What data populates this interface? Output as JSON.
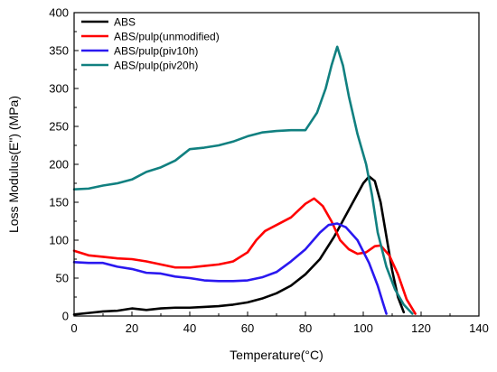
{
  "chart_data": {
    "type": "line",
    "xlabel": "Temperature(°C)",
    "ylabel": "Loss Modulus(E\") (MPa)",
    "xlim": [
      0,
      140
    ],
    "ylim": [
      0,
      400
    ],
    "xticks": [
      "0",
      "20",
      "40",
      "60",
      "80",
      "100",
      "120",
      "140"
    ],
    "yticks": [
      "0",
      "50",
      "100",
      "150",
      "200",
      "250",
      "300",
      "350",
      "400"
    ],
    "grid": false,
    "legend_position": "top-left",
    "series": [
      {
        "name": "ABS",
        "color": "#000000",
        "points": [
          [
            0,
            2
          ],
          [
            5,
            4
          ],
          [
            10,
            6
          ],
          [
            15,
            7
          ],
          [
            20,
            10
          ],
          [
            25,
            8
          ],
          [
            30,
            10
          ],
          [
            35,
            11
          ],
          [
            40,
            11
          ],
          [
            45,
            12
          ],
          [
            50,
            13
          ],
          [
            55,
            15
          ],
          [
            60,
            18
          ],
          [
            65,
            23
          ],
          [
            70,
            30
          ],
          [
            75,
            40
          ],
          [
            80,
            55
          ],
          [
            85,
            75
          ],
          [
            90,
            105
          ],
          [
            95,
            140
          ],
          [
            100,
            175
          ],
          [
            102,
            184
          ],
          [
            104,
            178
          ],
          [
            106,
            150
          ],
          [
            108,
            105
          ],
          [
            110,
            60
          ],
          [
            112,
            25
          ],
          [
            114,
            5
          ]
        ]
      },
      {
        "name": "ABS/pulp(unmodified)",
        "color": "#ff0000",
        "points": [
          [
            0,
            86
          ],
          [
            5,
            80
          ],
          [
            10,
            78
          ],
          [
            15,
            76
          ],
          [
            20,
            75
          ],
          [
            25,
            72
          ],
          [
            30,
            68
          ],
          [
            35,
            64
          ],
          [
            40,
            64
          ],
          [
            45,
            66
          ],
          [
            50,
            68
          ],
          [
            55,
            72
          ],
          [
            60,
            84
          ],
          [
            63,
            100
          ],
          [
            66,
            112
          ],
          [
            70,
            120
          ],
          [
            75,
            130
          ],
          [
            80,
            148
          ],
          [
            83,
            155
          ],
          [
            86,
            145
          ],
          [
            89,
            125
          ],
          [
            92,
            100
          ],
          [
            95,
            88
          ],
          [
            98,
            82
          ],
          [
            101,
            84
          ],
          [
            104,
            92
          ],
          [
            106,
            93
          ],
          [
            109,
            80
          ],
          [
            112,
            55
          ],
          [
            115,
            22
          ],
          [
            118,
            3
          ]
        ]
      },
      {
        "name": "ABS/pulp(piv10h)",
        "color": "#2a18f0",
        "points": [
          [
            0,
            71
          ],
          [
            5,
            70
          ],
          [
            10,
            70
          ],
          [
            15,
            65
          ],
          [
            20,
            62
          ],
          [
            25,
            57
          ],
          [
            30,
            56
          ],
          [
            35,
            52
          ],
          [
            40,
            50
          ],
          [
            45,
            47
          ],
          [
            50,
            46
          ],
          [
            55,
            46
          ],
          [
            60,
            47
          ],
          [
            65,
            51
          ],
          [
            70,
            58
          ],
          [
            75,
            72
          ],
          [
            80,
            88
          ],
          [
            85,
            110
          ],
          [
            88,
            120
          ],
          [
            91,
            122
          ],
          [
            94,
            117
          ],
          [
            98,
            100
          ],
          [
            102,
            70
          ],
          [
            105,
            40
          ],
          [
            107,
            15
          ],
          [
            108,
            3
          ]
        ]
      },
      {
        "name": "ABS/pulp(piv20h)",
        "color": "#118080",
        "points": [
          [
            0,
            167
          ],
          [
            5,
            168
          ],
          [
            10,
            172
          ],
          [
            15,
            175
          ],
          [
            20,
            180
          ],
          [
            25,
            190
          ],
          [
            30,
            196
          ],
          [
            35,
            205
          ],
          [
            40,
            220
          ],
          [
            45,
            222
          ],
          [
            50,
            225
          ],
          [
            55,
            230
          ],
          [
            60,
            237
          ],
          [
            65,
            242
          ],
          [
            70,
            244
          ],
          [
            75,
            245
          ],
          [
            80,
            245
          ],
          [
            84,
            268
          ],
          [
            87,
            300
          ],
          [
            89,
            330
          ],
          [
            91,
            355
          ],
          [
            93,
            330
          ],
          [
            95,
            290
          ],
          [
            98,
            240
          ],
          [
            101,
            200
          ],
          [
            103,
            160
          ],
          [
            105,
            110
          ],
          [
            108,
            65
          ],
          [
            111,
            35
          ],
          [
            114,
            15
          ],
          [
            117,
            3
          ]
        ]
      }
    ]
  }
}
